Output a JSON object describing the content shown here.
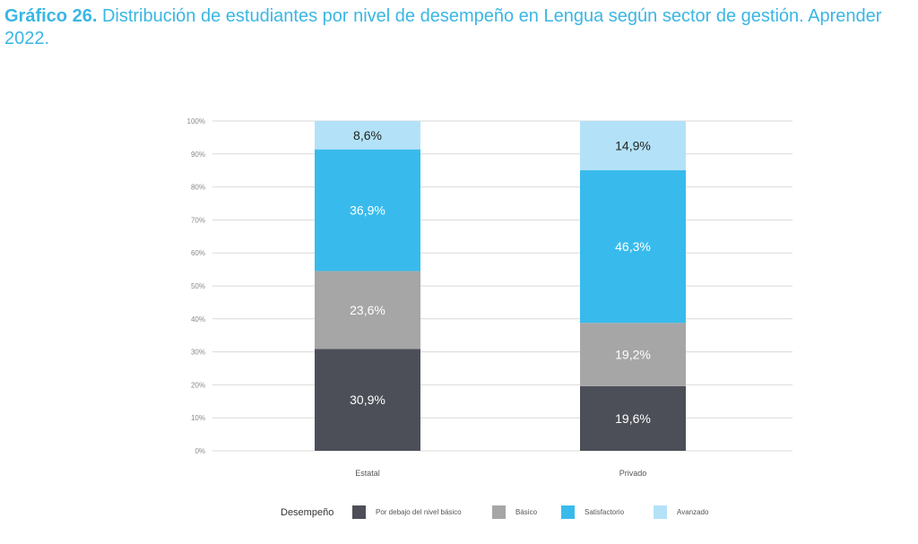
{
  "title": {
    "lead": "Gráfico 26.",
    "text": " Distribución de estudiantes por nivel de desempeño en Lengua según sector de gestión. Aprender 2022."
  },
  "chart_data": {
    "type": "bar",
    "stacked": true,
    "categories": [
      "Estatal",
      "Privado"
    ],
    "series": [
      {
        "name": "Por debajo del nivel básico",
        "values": [
          30.9,
          19.6
        ],
        "labels": [
          "30,9%",
          "19,6%"
        ],
        "color": "#4d4f58",
        "label_color": "#ffffff"
      },
      {
        "name": "Básico",
        "values": [
          23.6,
          19.2
        ],
        "labels": [
          "23,6%",
          "19,2%"
        ],
        "color": "#a6a6a6",
        "label_color": "#ffffff"
      },
      {
        "name": "Satisfactorio",
        "values": [
          36.9,
          46.3
        ],
        "labels": [
          "36,9%",
          "46,3%"
        ],
        "color": "#38bbec",
        "label_color": "#ffffff"
      },
      {
        "name": "Avanzado",
        "values": [
          8.6,
          14.9
        ],
        "labels": [
          "8,6%",
          "14,9%"
        ],
        "color": "#b3e2f8",
        "label_color": "#222222"
      }
    ],
    "y_ticks": [
      "0%",
      "10%",
      "20%",
      "30%",
      "40%",
      "50%",
      "60%",
      "70%",
      "80%",
      "90%",
      "100%"
    ],
    "ylim": [
      0,
      100
    ],
    "grid": true,
    "legend_title": "Desempeño",
    "legend_position": "bottom"
  }
}
